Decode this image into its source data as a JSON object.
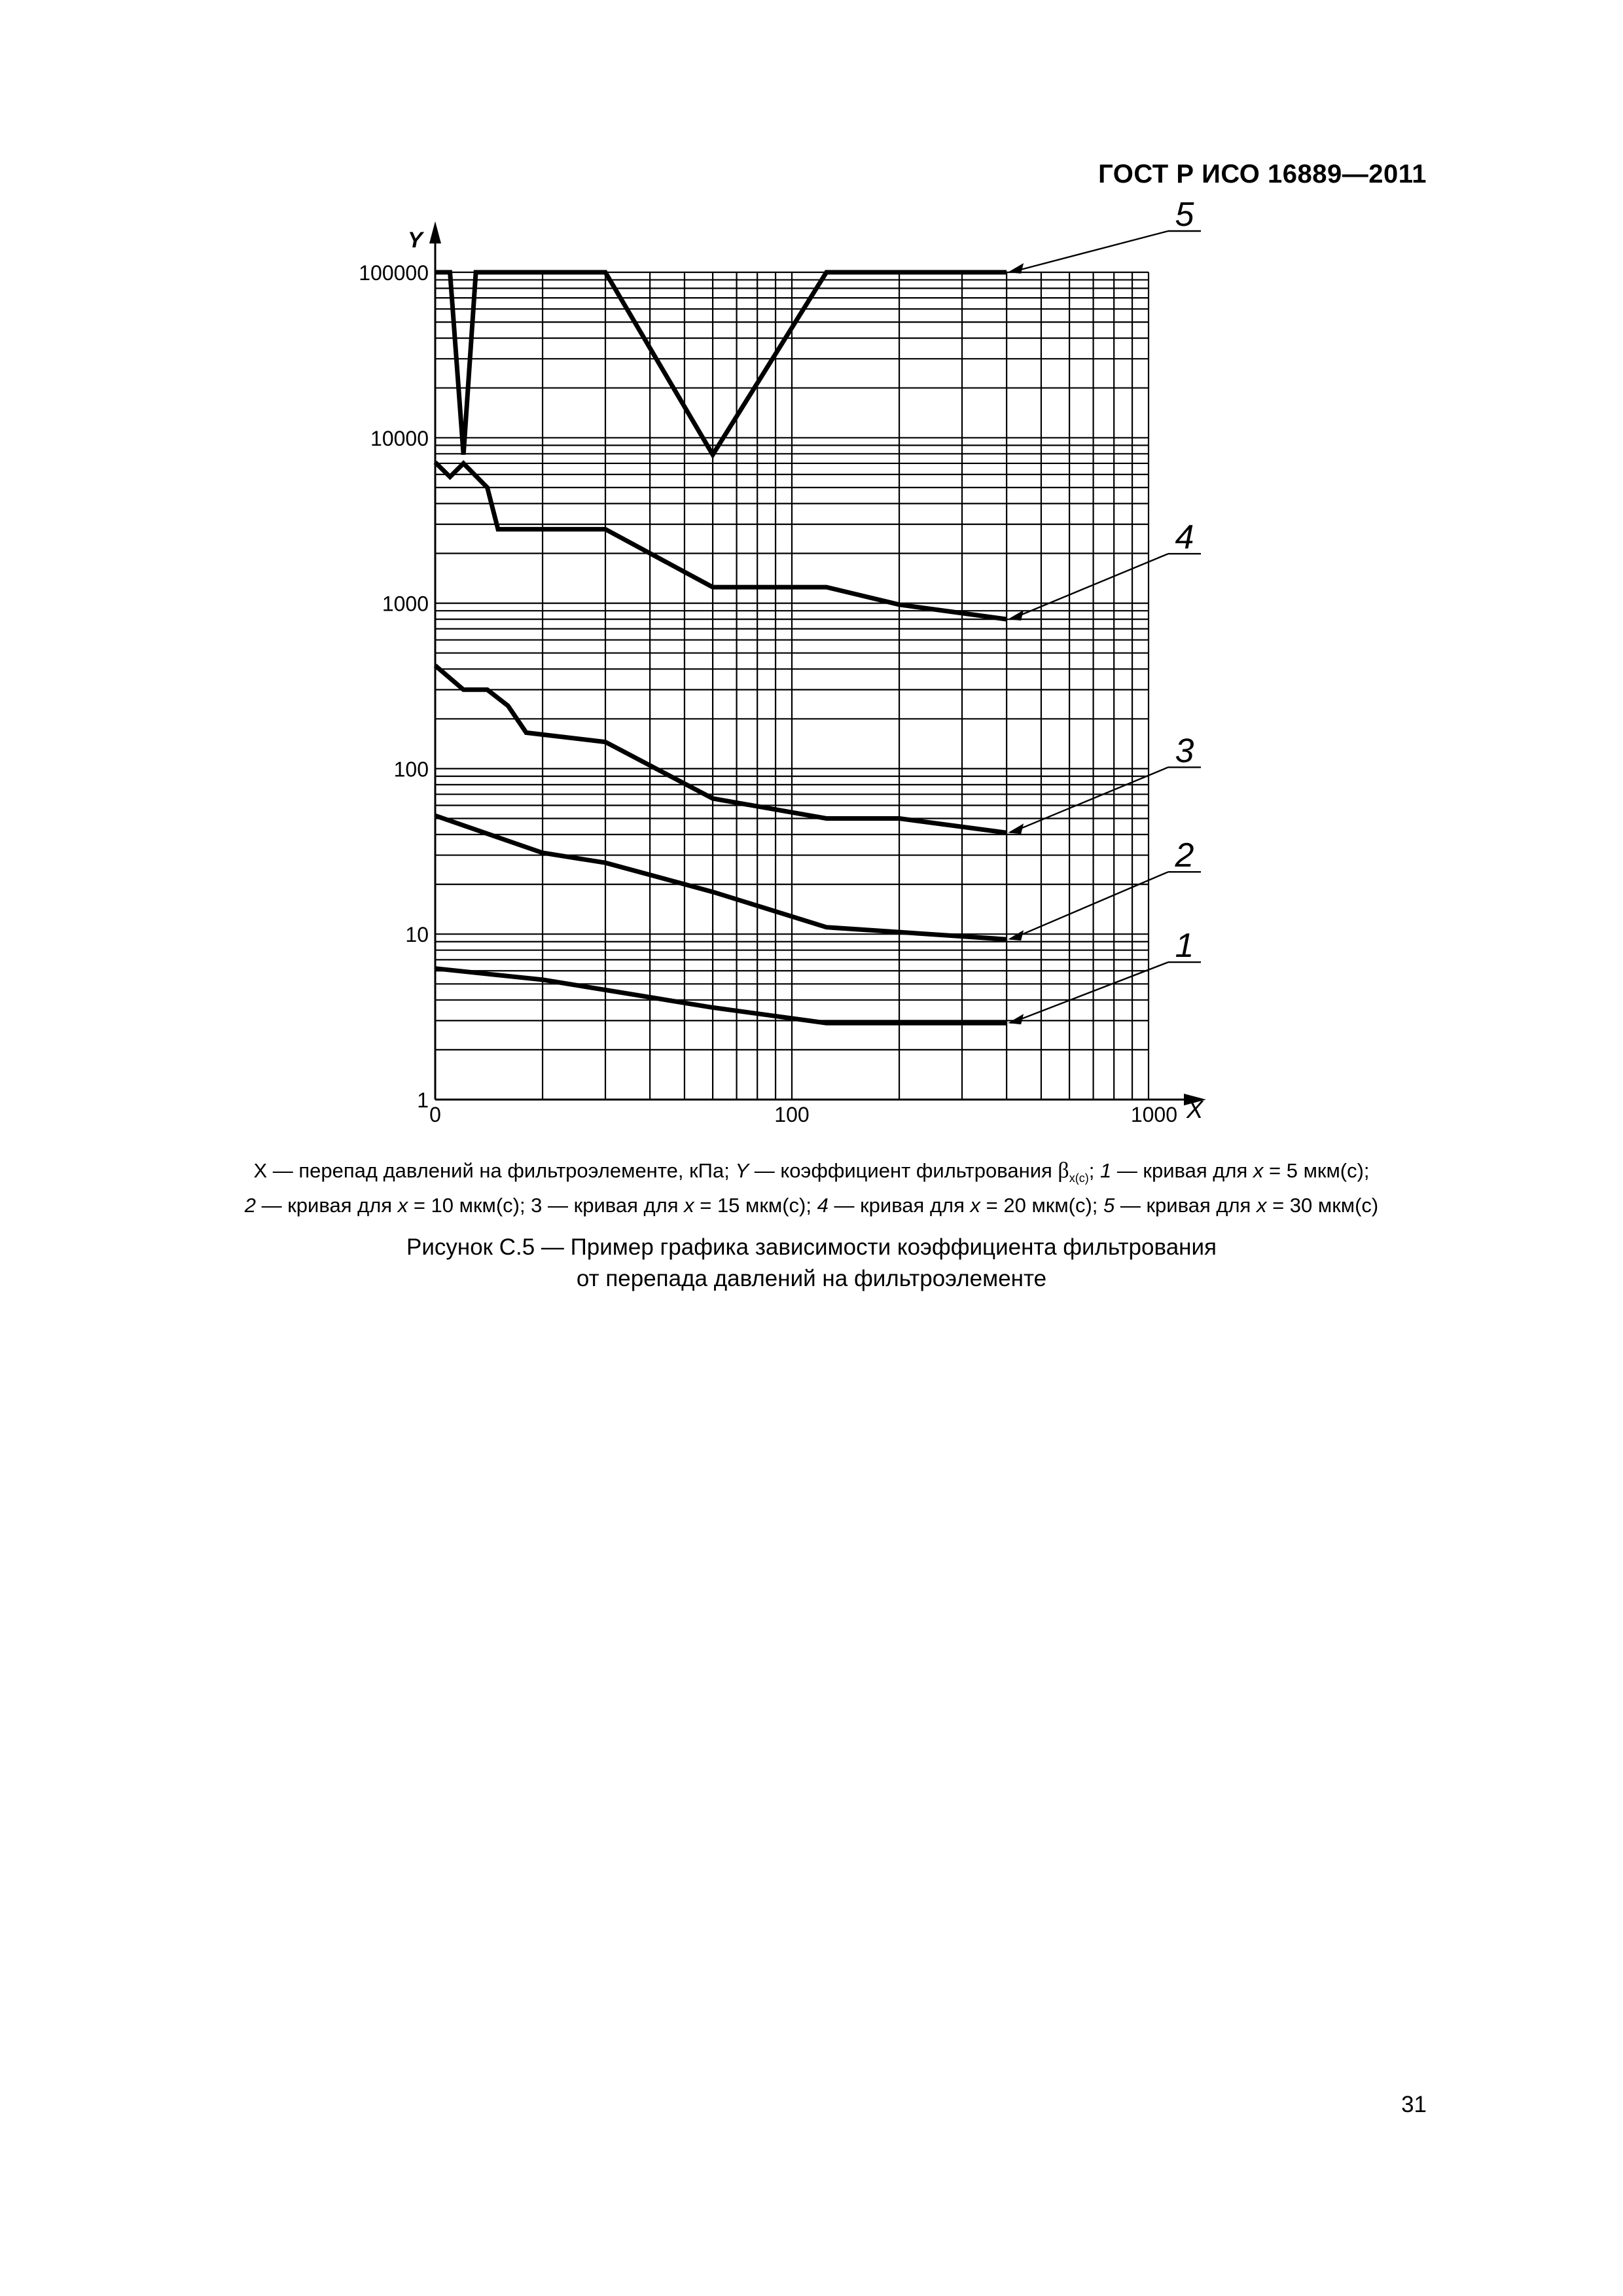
{
  "header": {
    "standard": "ГОСТ Р ИСО 16889—2011"
  },
  "chart_data": {
    "type": "line",
    "x_scale": "log",
    "y_scale": "log",
    "xlabel": "X",
    "ylabel": "Y",
    "xlim": [
      10,
      1000
    ],
    "ylim": [
      1,
      100000
    ],
    "x_tick_labels": [
      "0",
      "100",
      "1000"
    ],
    "y_tick_labels": [
      "1",
      "10",
      "100",
      "1000",
      "10000",
      "100000"
    ],
    "grid": true,
    "series": [
      {
        "name": "1",
        "x": [
          10,
          20,
          30,
          60,
          125,
          400
        ],
        "y": [
          6.2,
          5.3,
          4.6,
          3.6,
          2.9,
          2.9
        ]
      },
      {
        "name": "2",
        "x": [
          10,
          20,
          30,
          60,
          125,
          400
        ],
        "y": [
          52,
          31,
          27,
          18,
          11,
          9.3
        ]
      },
      {
        "name": "3",
        "x": [
          10,
          12,
          14,
          16,
          18,
          30,
          60,
          125,
          200,
          400
        ],
        "y": [
          420,
          300,
          300,
          240,
          165,
          145,
          66,
          50,
          50,
          41
        ]
      },
      {
        "name": "4",
        "x": [
          10,
          11,
          12,
          14,
          15,
          30,
          60,
          125,
          200,
          400
        ],
        "y": [
          7100,
          5800,
          7000,
          5000,
          2800,
          2800,
          1250,
          1250,
          980,
          800
        ]
      },
      {
        "name": "5",
        "x": [
          10,
          11,
          12,
          13,
          30,
          60,
          125,
          400
        ],
        "y": [
          100000,
          100000,
          7900,
          100000,
          100000,
          7900,
          100000,
          100000
        ]
      }
    ],
    "curve_callouts": [
      "1",
      "2",
      "3",
      "4",
      "5"
    ]
  },
  "legend": {
    "line1_a": "X — перепад давлений на фильтроэлементе, кПа; ",
    "line1_y": "Y",
    "line1_b": " — коэффициент фильтрования ",
    "beta": "β",
    "beta_sub": "x(c)",
    "line1_c": "; ",
    "c1_num": "1",
    "c1_text": " — кривая для ",
    "c1_x": "x",
    "c1_val": " = 5 мкм(с);",
    "c2_num": "2",
    "c2_text": " — кривая для ",
    "c2_x": "x",
    "c2_val": " = 10 мкм(с); 3 — кривая для ",
    "c3_x": "x",
    "c3_val": " = 15 мкм(с); ",
    "c4_num": "4",
    "c4_text": " — кривая для ",
    "c4_x": "x",
    "c4_val": " = 20 мкм(с); ",
    "c5_num": "5",
    "c5_text": " — кривая для ",
    "c5_x": "x",
    "c5_val": " = 30 мкм(с)"
  },
  "caption": {
    "line1": "Рисунок С.5 — Пример графика зависимости коэффициента фильтрования",
    "line2": "от перепада давлений на фильтроэлементе"
  },
  "page_number": "31"
}
